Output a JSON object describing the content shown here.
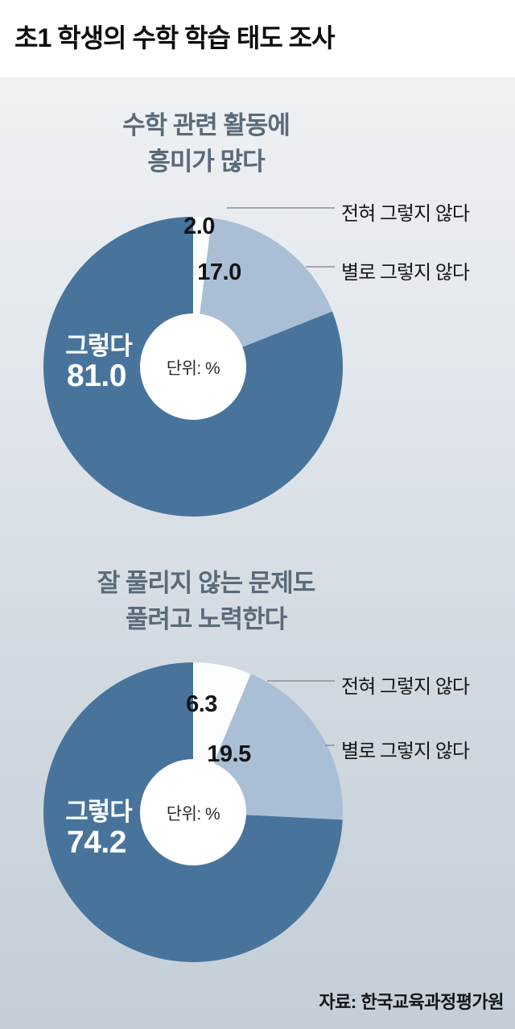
{
  "page": {
    "title": "초1 학생의 수학 학습 태도 조사",
    "unit_label": "단위: %",
    "source": "자료: 한국교육과정평가원"
  },
  "colors": {
    "yes_slice": "#48749c",
    "not_really_slice": "#aabfd5",
    "not_at_all_slice": "#fcfdfd",
    "leader_line": "#8a9096",
    "chart_title": "#5a6a78",
    "background_top": "#f2f4f6",
    "background_bottom": "#c3ced7"
  },
  "chart_data": [
    {
      "type": "pie",
      "title": "수학 관련 활동에 흥미가 많다",
      "title_lines": [
        "수학 관련 활동에",
        "흥미가 많다"
      ],
      "unit": "%",
      "start_angle": "top",
      "direction": "clockwise",
      "legend_position": "right-callouts",
      "slices": [
        {
          "label": "전혀 그렇지 않다",
          "value": 2.0,
          "value_label": "2.0",
          "color": "#fcfdfd"
        },
        {
          "label": "별로 그렇지 않다",
          "value": 17.0,
          "value_label": "17.0",
          "color": "#aabfd5"
        },
        {
          "label": "그렇다",
          "value": 81.0,
          "value_label": "81.0",
          "color": "#48749c"
        }
      ]
    },
    {
      "type": "pie",
      "title": "잘 풀리지 않는 문제도 풀려고 노력한다",
      "title_lines": [
        "잘 풀리지 않는 문제도",
        "풀려고 노력한다"
      ],
      "unit": "%",
      "start_angle": "top",
      "direction": "clockwise",
      "legend_position": "right-callouts",
      "slices": [
        {
          "label": "전혀 그렇지 않다",
          "value": 6.3,
          "value_label": "6.3",
          "color": "#fcfdfd"
        },
        {
          "label": "별로 그렇지 않다",
          "value": 19.5,
          "value_label": "19.5",
          "color": "#aabfd5"
        },
        {
          "label": "그렇다",
          "value": 74.2,
          "value_label": "74.2",
          "color": "#48749c"
        }
      ]
    }
  ]
}
